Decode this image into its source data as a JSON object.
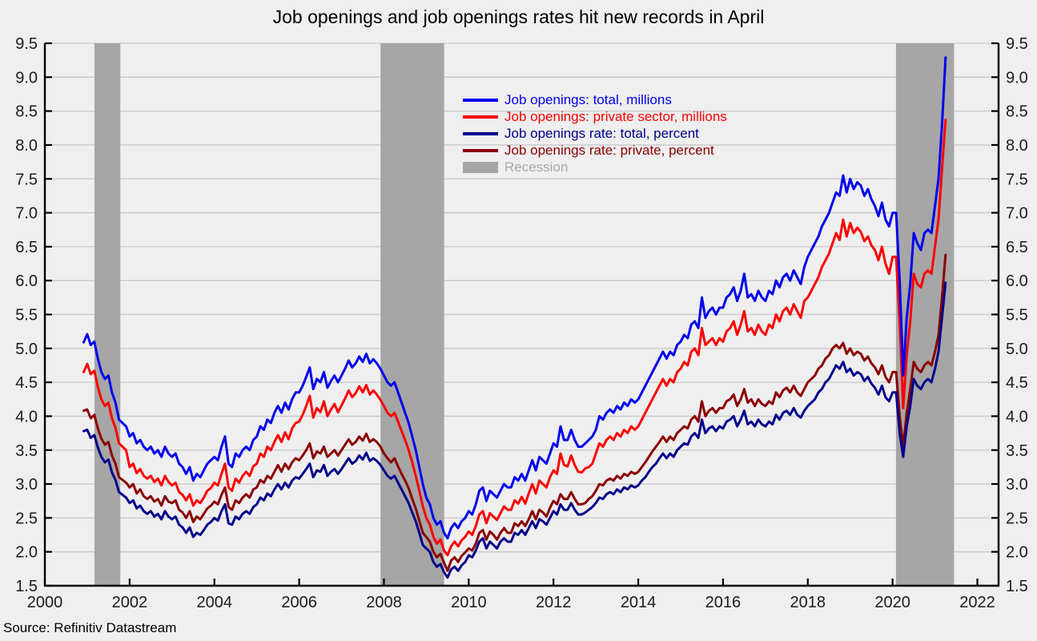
{
  "source": "Source: Refinitiv Datastream",
  "chart_data": {
    "type": "line",
    "title": "Job openings and job openings rates hit new records in April",
    "x_start": "2000-12",
    "x_frequency": "monthly",
    "grid": "horizontal",
    "legend_position": "upper-center",
    "background_color": "#efefef",
    "gridline_color": "#c9c9c9",
    "axis_color": "#000000",
    "x_axis": {
      "min": 2000,
      "max": 2022.5,
      "tick_years": [
        2000,
        2002,
        2004,
        2006,
        2008,
        2010,
        2012,
        2014,
        2016,
        2018,
        2020,
        2022
      ]
    },
    "y_axis": {
      "min": 1.5,
      "max": 9.5,
      "tick_step": 0.5,
      "sides": "both"
    },
    "recession_label": "Recession",
    "recession_color": "#a6a6a6",
    "recession_text_color": "#a9a9a9",
    "recession_bands": [
      {
        "start": 2001.17,
        "end": 2001.78
      },
      {
        "start": 2007.92,
        "end": 2009.42
      },
      {
        "start": 2020.08,
        "end": 2021.45
      }
    ],
    "series": [
      {
        "name": "Job openings: total, millions",
        "color": "#0000ee",
        "values": [
          5.09,
          5.21,
          5.05,
          5.1,
          4.85,
          4.65,
          4.55,
          4.6,
          4.35,
          4.2,
          3.95,
          3.9,
          3.85,
          3.7,
          3.75,
          3.6,
          3.65,
          3.55,
          3.5,
          3.55,
          3.45,
          3.5,
          3.4,
          3.55,
          3.45,
          3.4,
          3.45,
          3.3,
          3.25,
          3.15,
          3.25,
          3.05,
          3.15,
          3.1,
          3.2,
          3.3,
          3.35,
          3.4,
          3.35,
          3.55,
          3.7,
          3.3,
          3.25,
          3.45,
          3.4,
          3.5,
          3.55,
          3.5,
          3.65,
          3.7,
          3.85,
          3.8,
          3.95,
          3.9,
          4.05,
          4.15,
          4.05,
          4.2,
          4.1,
          4.25,
          4.35,
          4.35,
          4.45,
          4.58,
          4.72,
          4.4,
          4.55,
          4.5,
          4.65,
          4.42,
          4.52,
          4.6,
          4.5,
          4.6,
          4.7,
          4.82,
          4.72,
          4.78,
          4.88,
          4.8,
          4.92,
          4.78,
          4.84,
          4.78,
          4.7,
          4.6,
          4.5,
          4.45,
          4.5,
          4.35,
          4.2,
          4.05,
          3.9,
          3.7,
          3.5,
          3.25,
          3.0,
          2.8,
          2.7,
          2.5,
          2.4,
          2.45,
          2.28,
          2.2,
          2.35,
          2.42,
          2.35,
          2.45,
          2.5,
          2.6,
          2.55,
          2.7,
          2.9,
          2.95,
          2.75,
          2.9,
          2.85,
          2.8,
          2.9,
          3.0,
          2.95,
          2.95,
          3.1,
          3.05,
          3.15,
          3.05,
          3.2,
          3.35,
          3.2,
          3.4,
          3.35,
          3.3,
          3.45,
          3.6,
          3.55,
          3.85,
          3.65,
          3.65,
          3.8,
          3.65,
          3.55,
          3.55,
          3.6,
          3.65,
          3.7,
          3.8,
          4.0,
          3.95,
          4.05,
          4.1,
          4.05,
          4.15,
          4.1,
          4.2,
          4.15,
          4.25,
          4.2,
          4.25,
          4.35,
          4.45,
          4.55,
          4.65,
          4.75,
          4.85,
          4.95,
          4.85,
          4.95,
          4.9,
          5.05,
          5.1,
          5.2,
          5.15,
          5.35,
          5.4,
          5.3,
          5.75,
          5.45,
          5.55,
          5.6,
          5.5,
          5.6,
          5.6,
          5.75,
          5.8,
          5.9,
          5.7,
          5.85,
          6.1,
          5.75,
          5.8,
          5.7,
          5.85,
          5.75,
          5.7,
          5.85,
          5.8,
          6.0,
          5.9,
          6.05,
          6.1,
          6.0,
          6.15,
          6.05,
          5.95,
          6.2,
          6.35,
          6.45,
          6.55,
          6.65,
          6.8,
          6.9,
          7.0,
          7.15,
          7.3,
          7.25,
          7.55,
          7.3,
          7.5,
          7.35,
          7.45,
          7.4,
          7.25,
          7.35,
          7.2,
          7.1,
          6.95,
          7.15,
          6.9,
          6.8,
          7.0,
          7.0,
          6.0,
          4.6,
          5.45,
          5.95,
          6.7,
          6.55,
          6.45,
          6.7,
          6.75,
          6.7,
          7.1,
          7.5,
          8.3,
          9.29
        ]
      },
      {
        "name": "Job openings: private sector, millions",
        "color": "#fe0000",
        "values": [
          4.65,
          4.77,
          4.62,
          4.67,
          4.43,
          4.25,
          4.15,
          4.2,
          3.97,
          3.83,
          3.6,
          3.55,
          3.5,
          3.25,
          3.3,
          3.16,
          3.22,
          3.12,
          3.08,
          3.12,
          3.03,
          3.08,
          2.98,
          3.12,
          3.03,
          2.98,
          3.02,
          2.88,
          2.84,
          2.76,
          2.85,
          2.68,
          2.76,
          2.72,
          2.8,
          2.9,
          2.94,
          3.02,
          2.98,
          3.15,
          3.3,
          2.95,
          2.9,
          3.08,
          3.02,
          3.12,
          3.18,
          3.12,
          3.26,
          3.3,
          3.45,
          3.4,
          3.55,
          3.5,
          3.62,
          3.72,
          3.62,
          3.76,
          3.66,
          3.82,
          3.9,
          3.92,
          4.02,
          4.15,
          4.3,
          3.98,
          4.12,
          4.06,
          4.22,
          4.0,
          4.1,
          4.18,
          4.06,
          4.16,
          4.26,
          4.38,
          4.28,
          4.34,
          4.44,
          4.35,
          4.46,
          4.32,
          4.38,
          4.32,
          4.24,
          4.15,
          4.05,
          4.0,
          4.05,
          3.92,
          3.78,
          3.65,
          3.5,
          3.32,
          3.12,
          2.9,
          2.67,
          2.5,
          2.4,
          2.22,
          2.12,
          2.18,
          2.02,
          1.95,
          2.08,
          2.15,
          2.08,
          2.17,
          2.22,
          2.3,
          2.25,
          2.38,
          2.55,
          2.6,
          2.42,
          2.57,
          2.52,
          2.47,
          2.57,
          2.67,
          2.62,
          2.62,
          2.76,
          2.71,
          2.81,
          2.71,
          2.86,
          3.0,
          2.86,
          3.05,
          3.0,
          2.95,
          3.1,
          3.2,
          3.15,
          3.45,
          3.28,
          3.26,
          3.42,
          3.28,
          3.18,
          3.17,
          3.23,
          3.25,
          3.3,
          3.45,
          3.6,
          3.55,
          3.65,
          3.7,
          3.65,
          3.75,
          3.7,
          3.8,
          3.75,
          3.85,
          3.8,
          3.85,
          3.95,
          4.05,
          4.15,
          4.25,
          4.35,
          4.45,
          4.55,
          4.45,
          4.55,
          4.5,
          4.65,
          4.7,
          4.8,
          4.75,
          4.95,
          5.0,
          4.9,
          5.3,
          5.05,
          5.1,
          5.15,
          5.05,
          5.15,
          5.1,
          5.25,
          5.3,
          5.4,
          5.2,
          5.35,
          5.55,
          5.25,
          5.3,
          5.2,
          5.35,
          5.25,
          5.2,
          5.35,
          5.3,
          5.5,
          5.4,
          5.55,
          5.6,
          5.5,
          5.65,
          5.55,
          5.45,
          5.7,
          5.75,
          5.85,
          5.95,
          6.05,
          6.2,
          6.3,
          6.4,
          6.55,
          6.7,
          6.6,
          6.9,
          6.65,
          6.85,
          6.7,
          6.78,
          6.72,
          6.58,
          6.65,
          6.52,
          6.45,
          6.3,
          6.5,
          6.25,
          6.1,
          6.35,
          6.35,
          5.4,
          4.12,
          4.9,
          5.4,
          6.1,
          5.95,
          5.9,
          6.1,
          6.15,
          6.1,
          6.5,
          6.9,
          7.65,
          8.37
        ]
      },
      {
        "name": "Job openings rate: total, percent",
        "color": "#00008b",
        "values": [
          3.78,
          3.8,
          3.68,
          3.72,
          3.54,
          3.4,
          3.32,
          3.36,
          3.17,
          3.06,
          2.88,
          2.84,
          2.8,
          2.72,
          2.76,
          2.64,
          2.68,
          2.6,
          2.56,
          2.6,
          2.52,
          2.56,
          2.48,
          2.6,
          2.52,
          2.48,
          2.52,
          2.4,
          2.36,
          2.28,
          2.36,
          2.22,
          2.28,
          2.25,
          2.32,
          2.4,
          2.44,
          2.5,
          2.46,
          2.6,
          2.7,
          2.42,
          2.4,
          2.52,
          2.48,
          2.56,
          2.6,
          2.56,
          2.66,
          2.7,
          2.8,
          2.76,
          2.86,
          2.82,
          2.92,
          3.0,
          2.92,
          3.02,
          2.95,
          3.05,
          3.1,
          3.08,
          3.15,
          3.22,
          3.3,
          3.1,
          3.2,
          3.18,
          3.28,
          3.12,
          3.18,
          3.22,
          3.15,
          3.22,
          3.3,
          3.38,
          3.3,
          3.34,
          3.42,
          3.36,
          3.46,
          3.34,
          3.38,
          3.34,
          3.28,
          3.2,
          3.12,
          3.08,
          3.12,
          3.02,
          2.92,
          2.82,
          2.72,
          2.58,
          2.45,
          2.28,
          2.1,
          2.05,
          2.0,
          1.85,
          1.78,
          1.82,
          1.7,
          1.62,
          1.74,
          1.78,
          1.72,
          1.8,
          1.85,
          1.95,
          1.92,
          2.02,
          2.15,
          2.2,
          2.05,
          2.15,
          2.1,
          2.05,
          2.15,
          2.2,
          2.15,
          2.15,
          2.28,
          2.25,
          2.32,
          2.25,
          2.35,
          2.45,
          2.35,
          2.48,
          2.45,
          2.4,
          2.5,
          2.6,
          2.55,
          2.7,
          2.62,
          2.62,
          2.72,
          2.62,
          2.55,
          2.55,
          2.58,
          2.62,
          2.66,
          2.72,
          2.8,
          2.78,
          2.85,
          2.88,
          2.85,
          2.92,
          2.88,
          2.95,
          2.92,
          2.98,
          2.95,
          2.98,
          3.05,
          3.1,
          3.18,
          3.25,
          3.3,
          3.38,
          3.45,
          3.38,
          3.45,
          3.4,
          3.5,
          3.55,
          3.6,
          3.58,
          3.7,
          3.75,
          3.68,
          3.95,
          3.75,
          3.82,
          3.85,
          3.78,
          3.85,
          3.82,
          3.92,
          3.95,
          4.0,
          3.85,
          3.95,
          4.08,
          3.88,
          3.92,
          3.85,
          3.95,
          3.88,
          3.85,
          3.92,
          3.88,
          4.02,
          3.95,
          4.05,
          4.08,
          4.02,
          4.12,
          4.02,
          3.98,
          4.08,
          4.15,
          4.2,
          4.25,
          4.35,
          4.4,
          4.5,
          4.55,
          4.65,
          4.75,
          4.7,
          4.8,
          4.65,
          4.7,
          4.6,
          4.65,
          4.62,
          4.52,
          4.58,
          4.48,
          4.42,
          4.32,
          4.45,
          4.28,
          4.22,
          4.35,
          4.35,
          3.75,
          3.4,
          3.85,
          4.15,
          4.55,
          4.45,
          4.4,
          4.5,
          4.55,
          4.5,
          4.7,
          4.95,
          5.45,
          5.97
        ]
      },
      {
        "name": "Job openings rate: private, percent",
        "color": "#8b0000",
        "values": [
          4.08,
          4.1,
          3.97,
          4.02,
          3.82,
          3.67,
          3.58,
          3.62,
          3.42,
          3.3,
          3.1,
          3.06,
          3.02,
          2.95,
          3.0,
          2.86,
          2.92,
          2.82,
          2.78,
          2.82,
          2.74,
          2.78,
          2.68,
          2.82,
          2.74,
          2.72,
          2.76,
          2.62,
          2.58,
          2.5,
          2.6,
          2.44,
          2.52,
          2.48,
          2.56,
          2.64,
          2.68,
          2.74,
          2.7,
          2.84,
          2.95,
          2.66,
          2.62,
          2.76,
          2.72,
          2.8,
          2.85,
          2.8,
          2.92,
          2.95,
          3.06,
          3.02,
          3.12,
          3.08,
          3.18,
          3.28,
          3.18,
          3.3,
          3.22,
          3.32,
          3.38,
          3.35,
          3.42,
          3.5,
          3.6,
          3.38,
          3.48,
          3.45,
          3.55,
          3.4,
          3.45,
          3.5,
          3.42,
          3.5,
          3.58,
          3.66,
          3.58,
          3.62,
          3.7,
          3.64,
          3.74,
          3.62,
          3.66,
          3.62,
          3.55,
          3.45,
          3.38,
          3.32,
          3.38,
          3.26,
          3.15,
          3.05,
          2.94,
          2.78,
          2.64,
          2.46,
          2.28,
          2.22,
          2.15,
          2.0,
          1.92,
          1.97,
          1.84,
          1.72,
          1.87,
          1.92,
          1.85,
          1.94,
          1.99,
          2.05,
          2.02,
          2.12,
          2.28,
          2.32,
          2.18,
          2.3,
          2.25,
          2.18,
          2.28,
          2.35,
          2.28,
          2.28,
          2.42,
          2.38,
          2.45,
          2.38,
          2.48,
          2.6,
          2.48,
          2.62,
          2.58,
          2.52,
          2.65,
          2.75,
          2.7,
          2.85,
          2.78,
          2.78,
          2.88,
          2.78,
          2.7,
          2.7,
          2.72,
          2.78,
          2.82,
          2.9,
          3.0,
          2.98,
          3.05,
          3.08,
          3.05,
          3.12,
          3.08,
          3.15,
          3.12,
          3.18,
          3.15,
          3.18,
          3.25,
          3.32,
          3.4,
          3.48,
          3.55,
          3.62,
          3.7,
          3.62,
          3.7,
          3.65,
          3.75,
          3.8,
          3.85,
          3.82,
          3.95,
          4.0,
          3.92,
          4.22,
          4.0,
          4.08,
          4.12,
          4.05,
          4.12,
          4.12,
          4.22,
          4.25,
          4.32,
          4.15,
          4.25,
          4.4,
          4.2,
          4.25,
          4.15,
          4.25,
          4.18,
          4.15,
          4.22,
          4.18,
          4.35,
          4.28,
          4.38,
          4.42,
          4.35,
          4.45,
          4.35,
          4.3,
          4.4,
          4.5,
          4.55,
          4.6,
          4.7,
          4.75,
          4.85,
          4.9,
          5.0,
          5.05,
          5.0,
          5.08,
          4.92,
          5.0,
          4.9,
          4.95,
          4.92,
          4.82,
          4.88,
          4.78,
          4.72,
          4.62,
          4.75,
          4.58,
          4.5,
          4.65,
          4.65,
          4.0,
          3.55,
          4.05,
          4.4,
          4.8,
          4.7,
          4.65,
          4.75,
          4.8,
          4.75,
          4.95,
          5.2,
          5.75,
          6.38
        ]
      }
    ]
  }
}
